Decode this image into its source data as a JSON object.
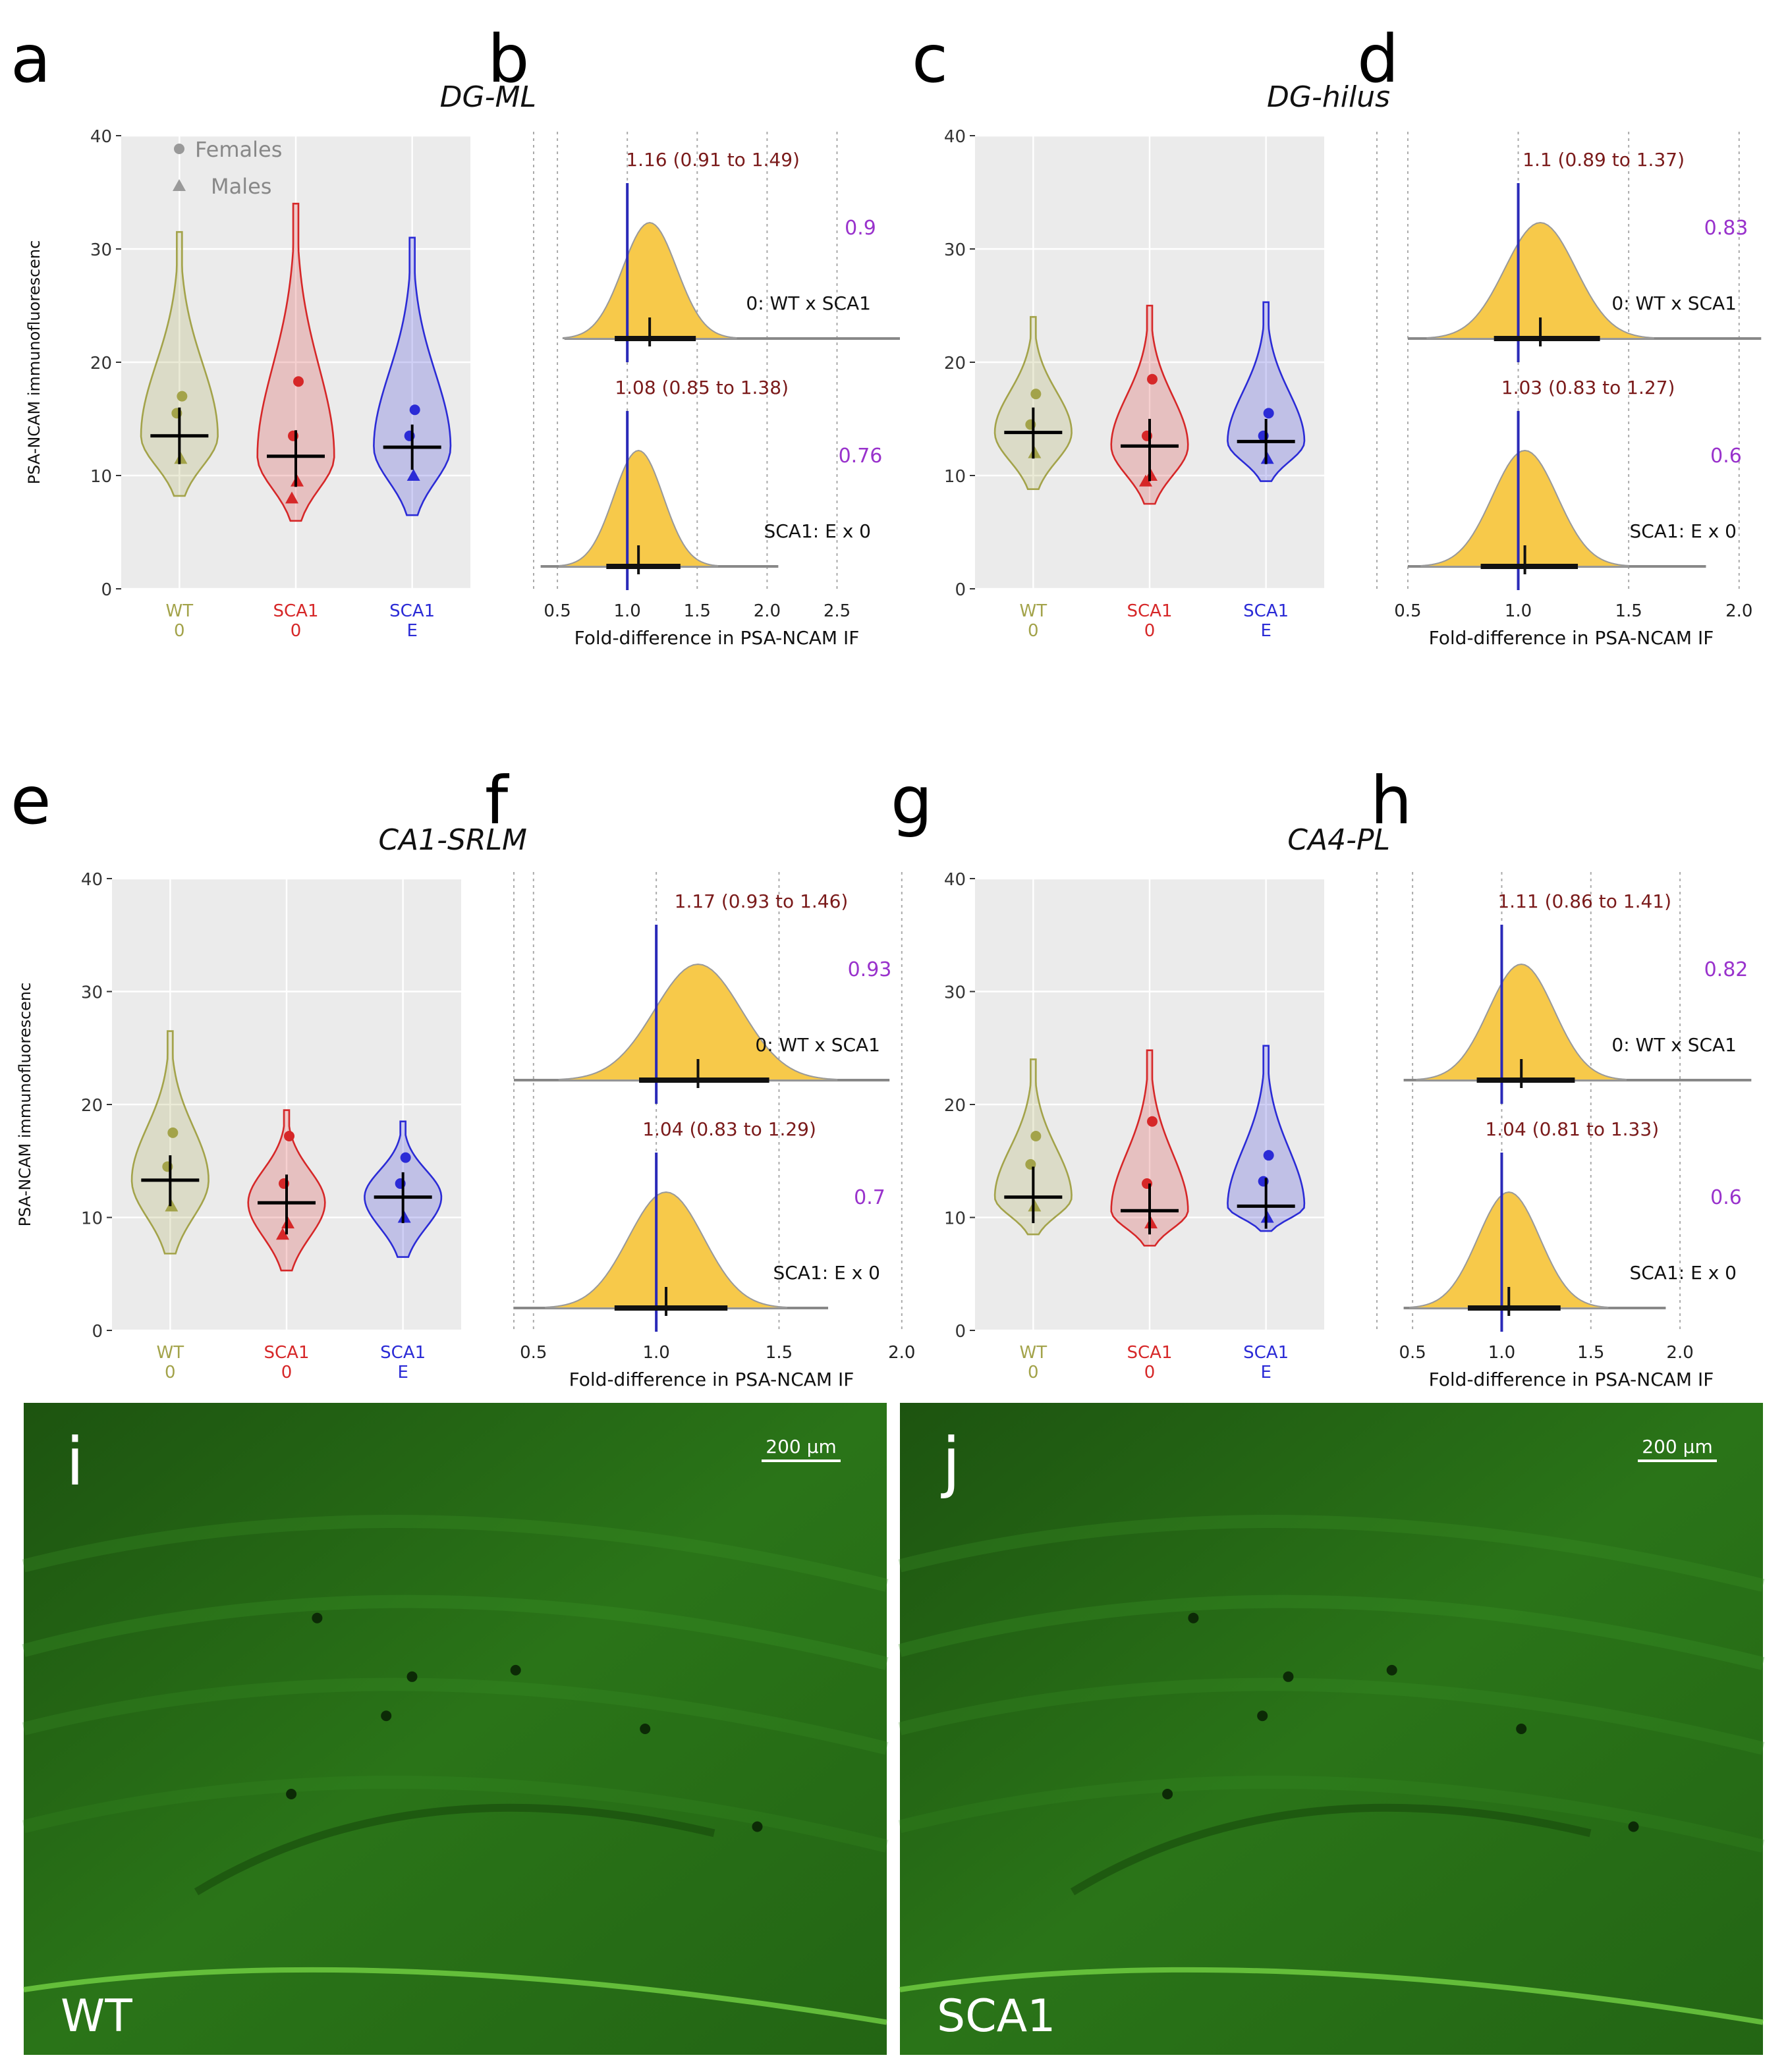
{
  "panel_labels": [
    "a",
    "b",
    "c",
    "d",
    "e",
    "f",
    "g",
    "h"
  ],
  "chart_data": [
    {
      "type": "violin",
      "title": "DG-ML",
      "ylabel": "PSA-NCAM immunofluorescenc",
      "ylim": [
        0,
        40
      ],
      "yticks": [
        0,
        10,
        20,
        30,
        40
      ],
      "grid": true,
      "legend": {
        "entries": [
          "Females",
          "Males"
        ],
        "position": "upper left"
      },
      "groups": [
        {
          "name": "WT",
          "sub": "0",
          "color": "#a3a34a",
          "range": [
            8.2,
            31.5
          ],
          "center": 13.5,
          "ci": [
            11,
            16
          ],
          "females": [
            17,
            15.5
          ],
          "males": [
            11.5
          ]
        },
        {
          "name": "SCA1",
          "sub": "0",
          "color": "#d62728",
          "range": [
            6,
            34
          ],
          "center": 11.7,
          "ci": [
            9,
            14
          ],
          "females": [
            18.3,
            13.5
          ],
          "males": [
            9.5,
            8
          ]
        },
        {
          "name": "SCA1",
          "sub": "E",
          "color": "#2b2bd6",
          "range": [
            6.5,
            31
          ],
          "center": 12.5,
          "ci": [
            10.5,
            14.5
          ],
          "females": [
            15.8,
            13.5
          ],
          "males": [
            10
          ]
        }
      ]
    },
    {
      "type": "density",
      "xlabel": "Fold-difference in PSA-NCAM IF",
      "xlim": [
        0.33,
        2.95
      ],
      "xticks": [
        0.5,
        {
          "value": 1,
          "label": "1.0"
        },
        1.5,
        {
          "value": 2,
          "label": "2.0"
        },
        2.5
      ],
      "reference": 1,
      "rows": [
        {
          "name": "0: WT x SCA1",
          "estimate": 1.16,
          "ci": [
            0.91,
            1.49
          ],
          "estimate_label": "1.16 (0.91 to 1.49)",
          "probability": 0.9,
          "tail": [
            0.55,
            2.95
          ]
        },
        {
          "name": "SCA1: E x 0",
          "estimate": 1.08,
          "ci": [
            0.85,
            1.38
          ],
          "estimate_label": "1.08 (0.85 to 1.38)",
          "probability": 0.76,
          "tail": [
            0.38,
            2.08
          ]
        }
      ]
    },
    {
      "type": "violin",
      "title": "DG-hilus",
      "ylim": [
        0,
        40
      ],
      "yticks": [
        0,
        10,
        20,
        30,
        40
      ],
      "grid": true,
      "groups": [
        {
          "name": "WT",
          "sub": "0",
          "color": "#a3a34a",
          "range": [
            8.8,
            24
          ],
          "center": 13.8,
          "ci": [
            11.5,
            16
          ],
          "females": [
            17.2,
            14.5
          ],
          "males": [
            12
          ]
        },
        {
          "name": "SCA1",
          "sub": "0",
          "color": "#d62728",
          "range": [
            7.5,
            25
          ],
          "center": 12.6,
          "ci": [
            9.5,
            15
          ],
          "females": [
            18.5,
            13.5
          ],
          "males": [
            10,
            9.5
          ]
        },
        {
          "name": "SCA1",
          "sub": "E",
          "color": "#2b2bd6",
          "range": [
            9.5,
            25.3
          ],
          "center": 13,
          "ci": [
            11,
            15
          ],
          "females": [
            15.5,
            13.5
          ],
          "males": [
            11.5
          ]
        }
      ]
    },
    {
      "type": "density",
      "xlabel": "Fold-difference in PSA-NCAM IF",
      "xlim": [
        0.36,
        2.12
      ],
      "xticks": [
        0.5,
        {
          "value": 1,
          "label": "1.0"
        },
        1.5,
        {
          "value": 2,
          "label": "2.0"
        }
      ],
      "reference": 1,
      "rows": [
        {
          "name": "0: WT x SCA1",
          "estimate": 1.1,
          "ci": [
            0.89,
            1.37
          ],
          "estimate_label": "1.1 (0.89 to 1.37)",
          "probability": 0.83,
          "tail": [
            0.5,
            2.1
          ]
        },
        {
          "name": "SCA1: E x 0",
          "estimate": 1.03,
          "ci": [
            0.83,
            1.27
          ],
          "estimate_label": "1.03 (0.83 to 1.27)",
          "probability": 0.6,
          "tail": [
            0.5,
            1.85
          ]
        }
      ]
    },
    {
      "type": "violin",
      "title": "CA1-SRLM",
      "ylabel": "PSA-NCAM immunofluorescenc",
      "ylim": [
        0,
        40
      ],
      "yticks": [
        0,
        10,
        20,
        30,
        40
      ],
      "grid": true,
      "groups": [
        {
          "name": "WT",
          "sub": "0",
          "color": "#a3a34a",
          "range": [
            6.8,
            26.5
          ],
          "center": 13.3,
          "ci": [
            11,
            15.5
          ],
          "females": [
            17.5,
            14.5
          ],
          "males": [
            11
          ]
        },
        {
          "name": "SCA1",
          "sub": "0",
          "color": "#d62728",
          "range": [
            5.3,
            19.5
          ],
          "center": 11.3,
          "ci": [
            8.5,
            13.8
          ],
          "females": [
            17.2,
            13
          ],
          "males": [
            9.5,
            8.5
          ]
        },
        {
          "name": "SCA1",
          "sub": "E",
          "color": "#2b2bd6",
          "range": [
            6.5,
            18.5
          ],
          "center": 11.8,
          "ci": [
            9.5,
            14
          ],
          "females": [
            15.3,
            13
          ],
          "males": [
            10
          ]
        }
      ]
    },
    {
      "type": "density",
      "xlabel": "Fold-difference in PSA-NCAM IF",
      "xlim": [
        0.42,
        2.03
      ],
      "xticks": [
        0.5,
        {
          "value": 1,
          "label": "1.0"
        },
        1.5,
        {
          "value": 2,
          "label": "2.0"
        }
      ],
      "reference": 1,
      "rows": [
        {
          "name": "0: WT x SCA1",
          "estimate": 1.17,
          "ci": [
            0.93,
            1.46
          ],
          "estimate_label": "1.17 (0.93 to 1.46)",
          "probability": 0.93,
          "tail": [
            0.42,
            1.95
          ]
        },
        {
          "name": "SCA1: E x 0",
          "estimate": 1.04,
          "ci": [
            0.83,
            1.29
          ],
          "estimate_label": "1.04 (0.83 to 1.29)",
          "probability": 0.7,
          "tail": [
            0.42,
            1.7
          ]
        }
      ]
    },
    {
      "type": "violin",
      "title": "CA4-PL",
      "ylim": [
        0,
        40
      ],
      "yticks": [
        0,
        10,
        20,
        30,
        40
      ],
      "grid": true,
      "groups": [
        {
          "name": "WT",
          "sub": "0",
          "color": "#a3a34a",
          "range": [
            8.5,
            24
          ],
          "center": 11.8,
          "ci": [
            9.5,
            14.5
          ],
          "females": [
            17.2,
            14.7
          ],
          "males": [
            11
          ]
        },
        {
          "name": "SCA1",
          "sub": "0",
          "color": "#d62728",
          "range": [
            7.5,
            24.8
          ],
          "center": 10.6,
          "ci": [
            8.5,
            13
          ],
          "females": [
            18.5,
            13
          ],
          "males": [
            9.5
          ]
        },
        {
          "name": "SCA1",
          "sub": "E",
          "color": "#2b2bd6",
          "range": [
            8.8,
            25.2
          ],
          "center": 11,
          "ci": [
            9,
            13.5
          ],
          "females": [
            15.5,
            13.2
          ],
          "males": [
            10
          ]
        }
      ]
    },
    {
      "type": "density",
      "xlabel": "Fold-difference in PSA-NCAM IF",
      "xlim": [
        0.3,
        2.48
      ],
      "xticks": [
        0.5,
        {
          "value": 1,
          "label": "1.0"
        },
        1.5,
        {
          "value": 2,
          "label": "2.0"
        }
      ],
      "reference": 1,
      "rows": [
        {
          "name": "0: WT x SCA1",
          "estimate": 1.11,
          "ci": [
            0.86,
            1.41
          ],
          "estimate_label": "1.11 (0.86 to 1.41)",
          "probability": 0.82,
          "tail": [
            0.45,
            2.4
          ]
        },
        {
          "name": "SCA1: E x 0",
          "estimate": 1.04,
          "ci": [
            0.81,
            1.33
          ],
          "estimate_label": "1.04 (0.81 to 1.33)",
          "probability": 0.6,
          "tail": [
            0.45,
            1.92
          ]
        }
      ]
    }
  ],
  "images": [
    {
      "panel": "i",
      "label": "WT",
      "scale_bar": "200 µm"
    },
    {
      "panel": "j",
      "label": "SCA1",
      "scale_bar": "200 µm"
    }
  ]
}
